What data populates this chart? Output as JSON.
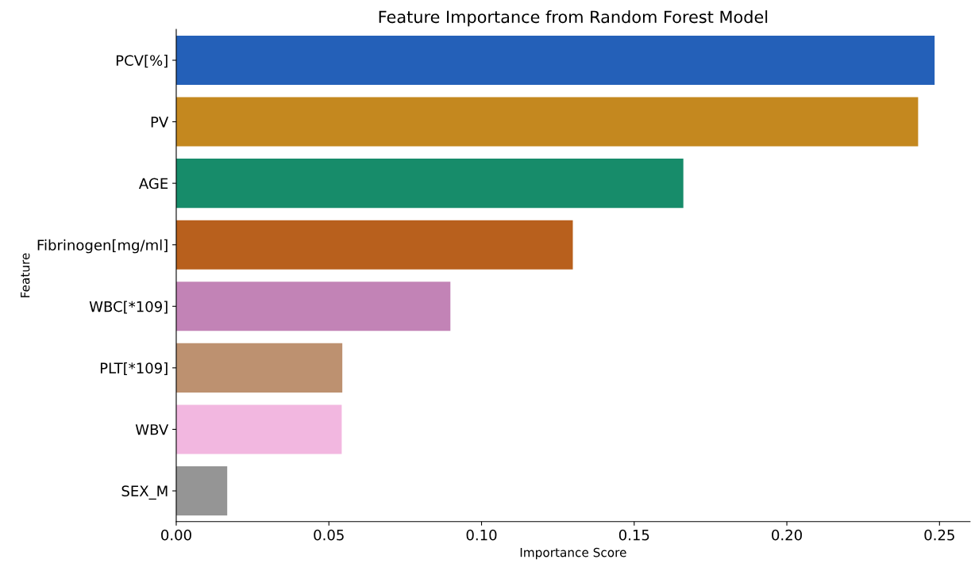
{
  "chart_data": {
    "type": "bar",
    "orientation": "horizontal",
    "title": "Feature Importance from Random Forest Model",
    "xlabel": "Importance Score",
    "ylabel": "Feature",
    "categories": [
      "PCV[%]",
      "PV",
      "AGE",
      "Fibrinogen[mg/ml]",
      "WBC[*109]",
      "PLT[*109]",
      "WBV",
      "SEX_M"
    ],
    "values": [
      0.2484,
      0.243,
      0.1661,
      0.1299,
      0.0898,
      0.0544,
      0.0542,
      0.0167
    ],
    "colors": [
      "#2460b8",
      "#c4881f",
      "#178c6a",
      "#b8601d",
      "#c283b6",
      "#bd9170",
      "#f2b7e0",
      "#959595"
    ],
    "xlim": [
      0,
      0.26
    ],
    "xticks": [
      {
        "value": 0,
        "label": "0.00"
      },
      {
        "value": 0.05,
        "label": "0.05"
      },
      {
        "value": 0.1,
        "label": "0.10"
      },
      {
        "value": 0.15,
        "label": "0.15"
      },
      {
        "value": 0.2,
        "label": "0.20"
      },
      {
        "value": 0.25,
        "label": "0.25"
      }
    ],
    "grid": false,
    "legend": false
  }
}
